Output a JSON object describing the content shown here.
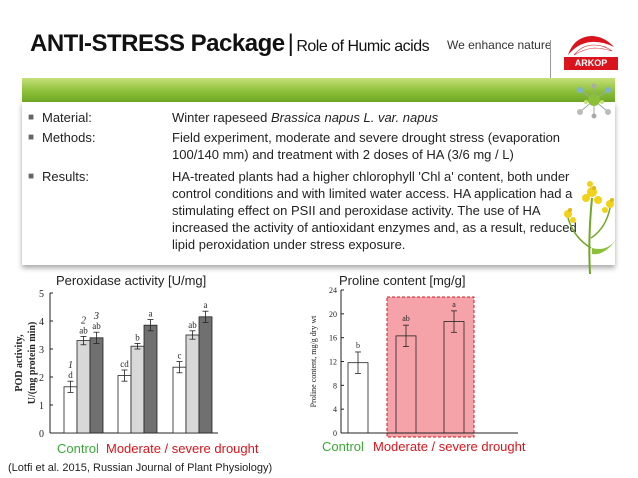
{
  "header": {
    "title": "ANTI-STRESS Package",
    "separator": "|",
    "subtitle": "Role of Humic acids",
    "tagline": "We enhance nature",
    "logo_text": "ARKOP"
  },
  "info": {
    "material": {
      "key": "Material:",
      "value": "Winter rapeseed ",
      "value_italic": "Brassica napus L. var. napus"
    },
    "methods": {
      "key": "Methods:",
      "value": "Field experiment, moderate and severe drought stress (evaporation 100/140 mm) and treatment with 2 doses of HA (3/6 mg / L)"
    },
    "results": {
      "key": "Results:",
      "value": "HA-treated plants had a higher chlorophyll 'Chl a' content, both under control conditions and with limited water access. HA application had a stimulating effect on PSII and peroxidase activity. The use of HA increased the activity of antioxidant enzymes and, as a result, reduced lipid peroxidation under stress exposure."
    }
  },
  "labels": {
    "control": "Control",
    "drought": "Moderate / severe drought",
    "citation": "(Lotfi et al. 2015, Russian Journal of Plant Physiology)"
  },
  "chart_data": [
    {
      "type": "bar",
      "title": "Peroxidase activity [U/mg]",
      "ylabel": "POD activity, U/(mg protein min)",
      "ylim": [
        0,
        5
      ],
      "yticks": [
        "0",
        "1",
        "2",
        "3",
        "4",
        "5"
      ],
      "categories": [
        "Control",
        "Moderate drought",
        "Severe drought"
      ],
      "series_markers": [
        "1",
        "2",
        "3"
      ],
      "series_colors": [
        "#ffffff",
        "#d8d8d8",
        "#707070"
      ],
      "values": [
        [
          1.65,
          3.3,
          3.4
        ],
        [
          2.05,
          3.1,
          3.85
        ],
        [
          2.35,
          3.5,
          4.15
        ]
      ],
      "errors": [
        [
          0.2,
          0.15,
          0.2
        ],
        [
          0.2,
          0.1,
          0.2
        ],
        [
          0.2,
          0.15,
          0.2
        ]
      ],
      "letters": [
        [
          "d",
          "ab",
          "ab"
        ],
        [
          "cd",
          "b",
          "a"
        ],
        [
          "c",
          "ab",
          "a"
        ]
      ]
    },
    {
      "type": "bar",
      "title": "Proline content [mg/g]",
      "ylabel": "Proline content, mg/g dry wt",
      "ylim": [
        0,
        24
      ],
      "yticks": [
        "0",
        "4",
        "8",
        "12",
        "16",
        "20",
        "24"
      ],
      "categories": [
        "Control",
        "Moderate drought",
        "Severe drought"
      ],
      "values": [
        11.8,
        16.3,
        18.7
      ],
      "errors": [
        1.8,
        1.8,
        1.8
      ],
      "letters": [
        "b",
        "ab",
        "a"
      ],
      "highlight_color": "#f5a3a8"
    }
  ]
}
